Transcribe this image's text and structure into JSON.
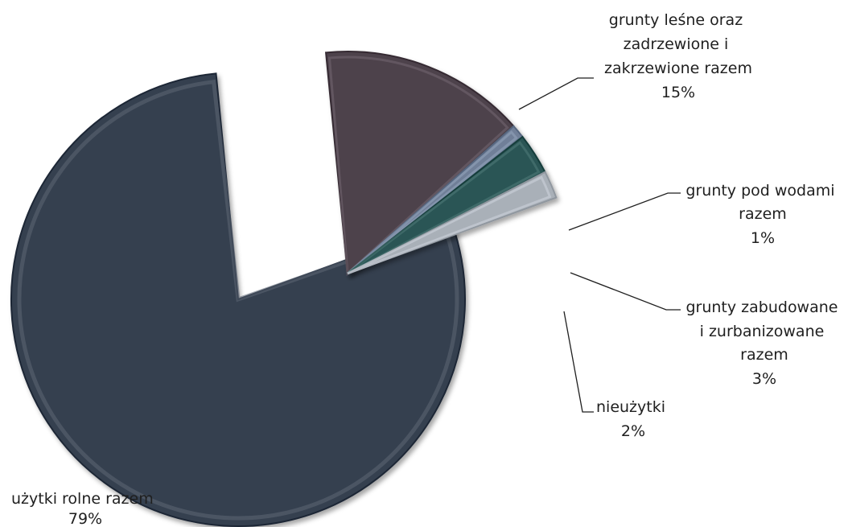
{
  "chart_data": {
    "type": "pie",
    "title": "",
    "legend": "none",
    "exploded": true,
    "slices": [
      {
        "label": "użytki rolne razem",
        "value": 79,
        "value_label": "79%",
        "color": "#36404f"
      },
      {
        "label": "grunty leśne oraz zadrzewione i zakrzewione razem",
        "value": 15,
        "value_label": "15%",
        "color": "#4e424c"
      },
      {
        "label": "grunty pod wodami razem",
        "value": 1,
        "value_label": "1%",
        "color": "#6f7f98"
      },
      {
        "label": "grunty zabudowane i zurbanizowane razem",
        "value": 3,
        "value_label": "3%",
        "color": "#2b5554"
      },
      {
        "label": "nieużytki",
        "value": 2,
        "value_label": "2%",
        "color": "#a9b0b8"
      }
    ]
  }
}
